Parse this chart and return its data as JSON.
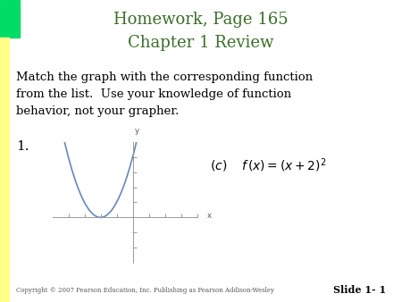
{
  "title_line1": "Homework, Page 165",
  "title_line2": "Chapter 1 Review",
  "title_color": "#3a6e28",
  "body_color": "#000000",
  "background_color": "#ffffff",
  "top_bar_color": "#00dd66",
  "left_yellow_color": "#ffff88",
  "graph_curve_color": "#6688bb",
  "graph_xlim": [
    -5,
    4
  ],
  "graph_ylim": [
    -3,
    5
  ],
  "graph_x_ticks": [
    -4,
    -3,
    -2,
    -1,
    1,
    2,
    3,
    4
  ],
  "graph_y_ticks": [
    -2,
    -1,
    1,
    2,
    3,
    4
  ],
  "copyright_text": "Copyright © 2007 Pearson Education, Inc. Publishing as Pearson Addison-Wesley",
  "slide_text": "Slide 1- 1"
}
